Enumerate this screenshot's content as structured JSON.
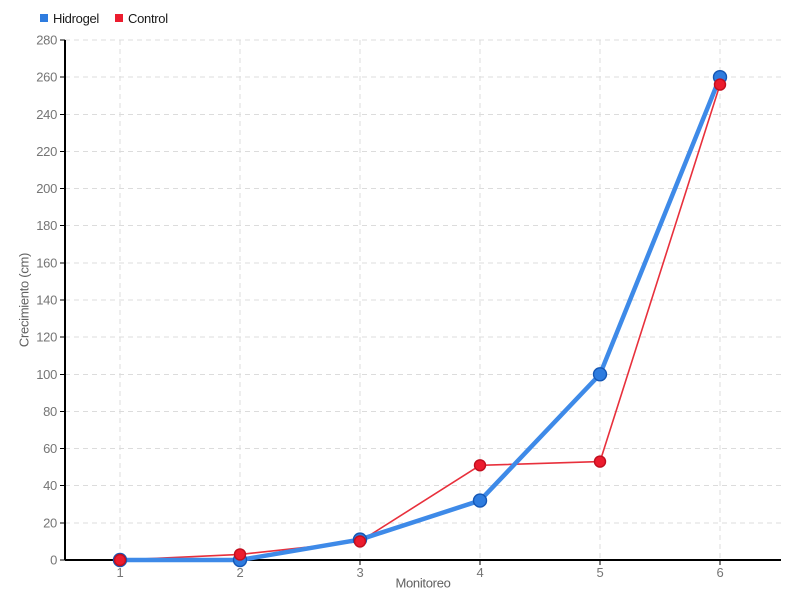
{
  "chart_data": {
    "type": "line",
    "title": "",
    "xlabel": "Monitoreo",
    "ylabel": "Crecimiento (cm)",
    "x": [
      1,
      2,
      3,
      4,
      5,
      6
    ],
    "series": [
      {
        "name": "Hidrogel",
        "values": [
          0,
          0,
          11,
          32,
          100,
          260
        ],
        "line_color": "#3E8AE8",
        "line_width": 4.5,
        "marker_fill": "#2E7CDF",
        "marker_stroke": "#1456B4",
        "marker_radius": 6.5
      },
      {
        "name": "Control",
        "values": [
          0,
          3,
          10,
          51,
          53,
          256
        ],
        "line_color": "#E8303C",
        "line_width": 1.6,
        "marker_fill": "#EC1C2E",
        "marker_stroke": "#C10E1E",
        "marker_radius": 5.5
      }
    ],
    "ylim": [
      0,
      280
    ],
    "ytick_step": 20,
    "grid": true,
    "legend_position": "top-left",
    "colors": {
      "grid": "#DCDCDC",
      "axis": "#000000",
      "tick_label": "#757575",
      "axis_title": "#616161",
      "legend_text": "#1A1A1A",
      "background": "#FFFFFF"
    }
  }
}
